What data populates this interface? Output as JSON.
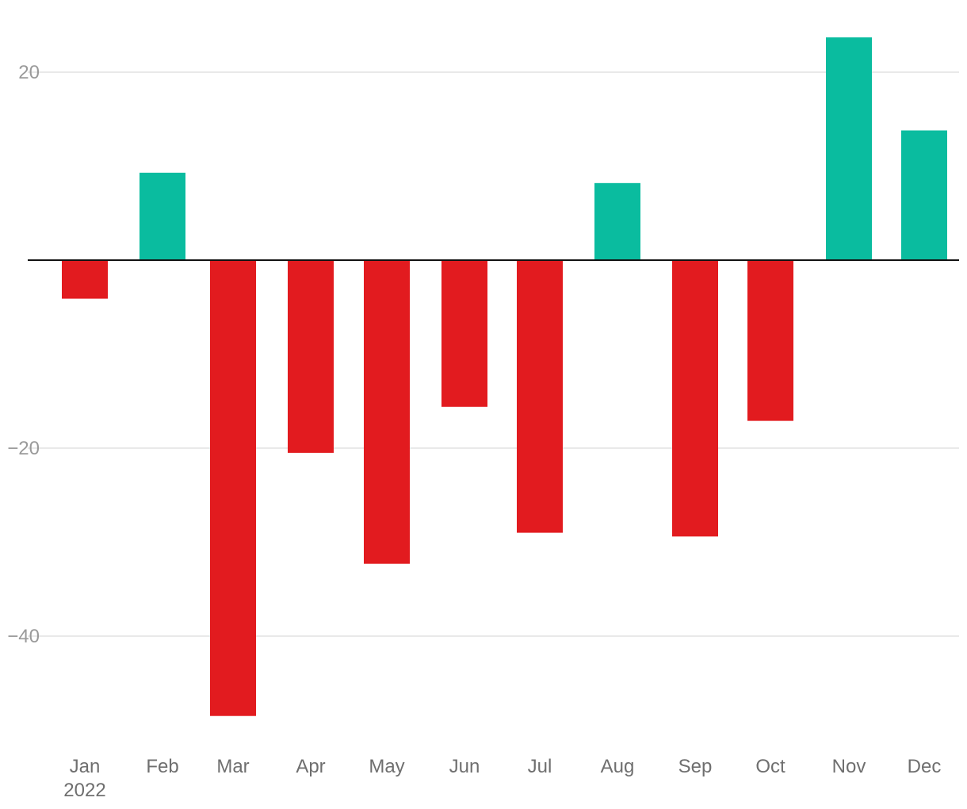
{
  "chart_data": {
    "type": "bar",
    "categories": [
      "Jan",
      "Feb",
      "Mar",
      "Apr",
      "May",
      "Jun",
      "Jul",
      "Aug",
      "Sep",
      "Oct",
      "Nov",
      "Dec"
    ],
    "year_label": "2022",
    "values": [
      -4.1,
      9.3,
      -48.5,
      -20.5,
      -32.3,
      -15.6,
      -29.0,
      8.2,
      -29.4,
      -17.1,
      23.7,
      13.8
    ],
    "ylim": [
      -51,
      26
    ],
    "yticks": [
      20,
      -20,
      -40
    ],
    "ytick_labels": [
      "20",
      "−20",
      "−40"
    ],
    "grid": true,
    "colors": {
      "positive": "#0abc9f",
      "negative": "#e21b1f",
      "zero_line": "#111111",
      "grid": "#e2e2e2"
    },
    "title": "",
    "xlabel": "",
    "ylabel": ""
  }
}
